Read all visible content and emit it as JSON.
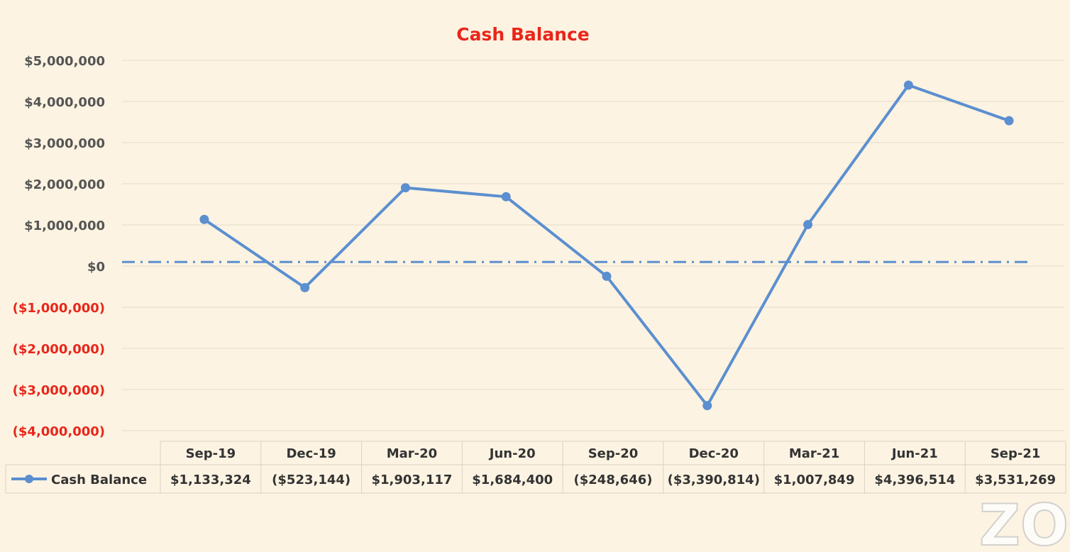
{
  "chart_data": {
    "type": "line",
    "title": "Cash Balance",
    "categories": [
      "Sep-19",
      "Dec-19",
      "Mar-20",
      "Jun-20",
      "Sep-20",
      "Dec-20",
      "Mar-21",
      "Jun-21",
      "Sep-21"
    ],
    "series": [
      {
        "name": "Cash Balance",
        "values": [
          1133324,
          -523144,
          1903117,
          1684400,
          -248646,
          -3390814,
          1007849,
          4396514,
          3531269
        ],
        "labels": [
          "$1,133,324",
          "($523,144)",
          "$1,903,117",
          "$1,684,400",
          "($248,646)",
          "($3,390,814)",
          "$1,007,849",
          "$4,396,514",
          "$3,531,269"
        ],
        "color": "#5b8fd0"
      }
    ],
    "ylim": [
      -4000000,
      5000000
    ],
    "yticks": [
      {
        "value": 5000000,
        "label": "$5,000,000"
      },
      {
        "value": 4000000,
        "label": "$4,000,000"
      },
      {
        "value": 3000000,
        "label": "$3,000,000"
      },
      {
        "value": 2000000,
        "label": "$2,000,000"
      },
      {
        "value": 1000000,
        "label": "$1,000,000"
      },
      {
        "value": 0,
        "label": "$0"
      },
      {
        "value": -1000000,
        "label": "($1,000,000)"
      },
      {
        "value": -2000000,
        "label": "($2,000,000)"
      },
      {
        "value": -3000000,
        "label": "($3,000,000)"
      },
      {
        "value": -4000000,
        "label": "($4,000,000)"
      }
    ],
    "reference_line": {
      "value": 100000,
      "style": "dash-dot",
      "color": "#5b8fd0"
    },
    "grid": true,
    "legend": "data-table",
    "colors": {
      "title": "#e8261b",
      "positive_tick": "#555555",
      "negative_tick": "#e8261b",
      "background": "#fdf3e2"
    }
  },
  "watermark": "ZO"
}
